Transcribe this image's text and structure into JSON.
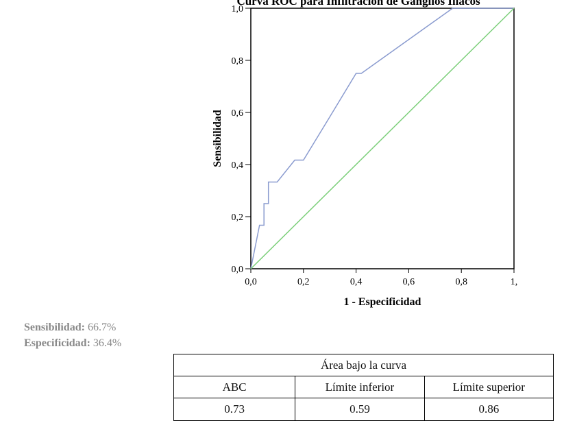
{
  "chart_data": {
    "type": "line",
    "title": "Curva ROC para Infiltración de Ganglios Iliácos",
    "xlabel": "1 - Especificidad",
    "ylabel": "Sensibilidad",
    "xlim": [
      0,
      1
    ],
    "ylim": [
      0,
      1
    ],
    "xticks": [
      "0,0",
      "0,2",
      "0,4",
      "0,6",
      "0,8",
      "1,"
    ],
    "yticks": [
      "0,0",
      "0,2",
      "0,4",
      "0,6",
      "0,8",
      "1,0"
    ],
    "series": [
      {
        "color": "#8a9bcf",
        "x": [
          0,
          0.033,
          0.033,
          0.05,
          0.05,
          0.067,
          0.067,
          0.1,
          0.167,
          0.2,
          0.3,
          0.4,
          0.42,
          0.767,
          1.0
        ],
        "y": [
          0,
          0.167,
          0.167,
          0.167,
          0.25,
          0.25,
          0.333,
          0.333,
          0.417,
          0.417,
          0.583,
          0.75,
          0.75,
          1.0,
          1.0
        ]
      },
      {
        "color": "#7ccf7a",
        "x": [
          0,
          1
        ],
        "y": [
          0,
          1
        ]
      }
    ]
  },
  "stats": {
    "sens_label": "Sensibilidad:",
    "sens_value": " 66.7%",
    "spec_label": "Especificidad:",
    "spec_value": " 36.4%"
  },
  "table": {
    "title": "Área bajo la curva",
    "headers": [
      "ABC",
      "Límite inferior",
      "Límite superior"
    ],
    "values": [
      "0.73",
      "0.59",
      "0.86"
    ]
  }
}
